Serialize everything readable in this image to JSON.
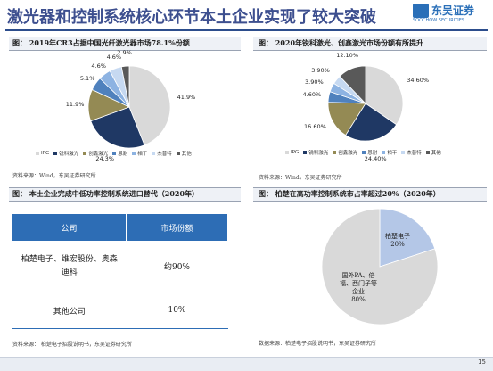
{
  "header": {
    "title": "激光器和控制系统核心环节本土企业实现了较大突破",
    "logo_name": "东吴证券",
    "logo_sub": "SOOCHOW SECURITIES"
  },
  "fig1": {
    "caption": "图： 2019年CR3占据中国光纤激光器市场78.1%份额",
    "source": "资料来源：Wind，东吴证券研究所",
    "legend": [
      "IPG",
      "锐科激光",
      "创鑫激光",
      "恩耐",
      "相干",
      "杰普特",
      "其他"
    ],
    "colors": [
      "#d9d9d9",
      "#1f3864",
      "#948a54",
      "#4f81bd",
      "#8db3e2",
      "#c6d9f1",
      "#595959"
    ],
    "value_labels": [
      "41.9%",
      "24.3%",
      "11.9%",
      "5.1%",
      "4.6%",
      "4.6%",
      "2.9%"
    ]
  },
  "fig2": {
    "caption": "图： 2020年锐科激光、创鑫激光市场份额有所提升",
    "source": "资料来源：Wind，东吴证券研究所",
    "legend": [
      "IPG",
      "锐科激光",
      "创鑫激光",
      "恩耐",
      "相干",
      "杰普特",
      "其他"
    ],
    "colors": [
      "#d9d9d9",
      "#1f3864",
      "#948a54",
      "#4f81bd",
      "#8db3e2",
      "#c6d9f1",
      "#595959"
    ],
    "value_labels": [
      "34.60%",
      "24.40%",
      "16.60%",
      "4.60%",
      "3.90%",
      "3.90%",
      "12.10%"
    ]
  },
  "fig3": {
    "caption": "图： 本土企业完成中低功率控制系统进口替代（2020年）",
    "source": "资料来源： 柏楚电子招股说明书，东吴证券研究所",
    "col_company": "公司",
    "col_share": "市场份额",
    "rows": [
      {
        "company": "柏楚电子、维宏股份、奥森迪科",
        "share": "约90%"
      },
      {
        "company": "其他公司",
        "share": "10%"
      }
    ]
  },
  "fig4": {
    "caption": "图： 柏楚在高功率控制系统市占率超过20%（2020年）",
    "source": "数据来源：柏楚电子招股说明书，东吴证券研究所",
    "slice_a_label": "柏楚电子",
    "slice_a_value": "20%",
    "slice_b_label": "国外PA、倍福、西门子等企业",
    "slice_b_value": "80%",
    "colors": [
      "#b4c7e7",
      "#d9d9d9"
    ]
  },
  "chart_data": [
    {
      "type": "pie",
      "title": "2019年CR3占据中国光纤激光器市场78.1%份额",
      "categories": [
        "IPG",
        "锐科激光",
        "创鑫激光",
        "恩耐",
        "相干",
        "杰普特",
        "其他"
      ],
      "values": [
        41.9,
        24.3,
        11.9,
        5.1,
        4.6,
        4.6,
        2.9
      ],
      "legend": "bottom"
    },
    {
      "type": "pie",
      "title": "2020年锐科激光、创鑫激光市场份额有所提升",
      "categories": [
        "IPG",
        "锐科激光",
        "创鑫激光",
        "恩耐",
        "相干",
        "杰普特",
        "其他"
      ],
      "values": [
        34.6,
        24.4,
        16.6,
        4.6,
        3.9,
        3.9,
        12.1
      ],
      "legend": "bottom"
    },
    {
      "type": "pie",
      "title": "柏楚在高功率控制系统市占率超过20%（2020年）",
      "categories": [
        "柏楚电子",
        "国外PA、倍福、西门子等企业"
      ],
      "values": [
        20,
        80
      ]
    }
  ],
  "footer": {
    "page": "15"
  }
}
